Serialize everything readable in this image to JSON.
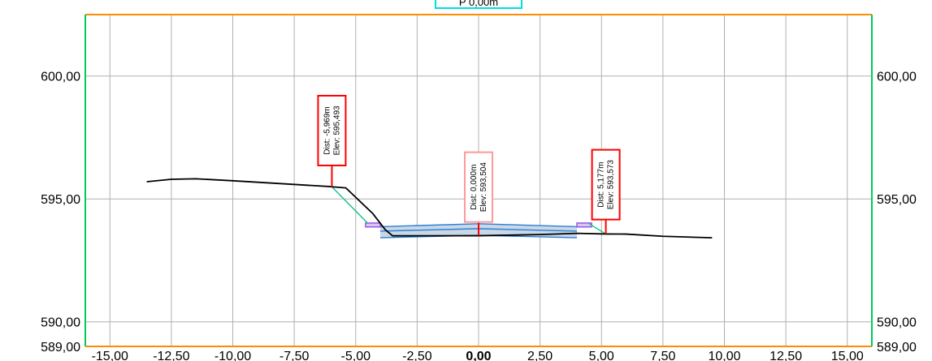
{
  "chart_data": {
    "type": "line",
    "title": "P 0,00m",
    "xlim": [
      -16,
      16
    ],
    "ylim": [
      589,
      602.5
    ],
    "x_ticks": [
      -15,
      -12.5,
      -10,
      -7.5,
      -5,
      -2.5,
      0,
      2.5,
      5,
      7.5,
      10,
      12.5,
      15
    ],
    "x_tick_labels": [
      "-15,00",
      "-12,50",
      "-10,00",
      "-7,50",
      "-5,00",
      "-2,50",
      "0,00",
      "2,50",
      "5,00",
      "7,50",
      "10,00",
      "12,50",
      "15,00"
    ],
    "y_ticks": [
      589,
      590,
      595,
      600
    ],
    "y_tick_labels": [
      "589,00",
      "590,00",
      "595,00",
      "600,00"
    ],
    "grid": true,
    "series": [
      {
        "kind": "ground",
        "color": "#000000",
        "x": [
          -13.5,
          -12.5,
          -11.5,
          -10.0,
          -8.0,
          -6.0,
          -5.97,
          -5.4,
          -4.3,
          -3.8,
          -3.5,
          0.0,
          2.5,
          4.0,
          5.18,
          6.0,
          7.5,
          9.5
        ],
        "y": [
          595.7,
          595.8,
          595.82,
          595.74,
          595.62,
          595.5,
          595.493,
          595.45,
          594.4,
          593.75,
          593.5,
          593.504,
          593.55,
          593.6,
          593.573,
          593.57,
          593.48,
          593.42
        ]
      },
      {
        "kind": "slope-left",
        "color": "#12c08a",
        "x": [
          -5.969,
          -4.5
        ],
        "y": [
          595.493,
          594.0
        ]
      },
      {
        "kind": "slope-right",
        "color": "#12c08a",
        "x": [
          4.5,
          5.177
        ],
        "y": [
          593.99,
          593.573
        ]
      },
      {
        "kind": "pavement-top",
        "color": "#2a7fd4",
        "x": [
          -4.0,
          0.0,
          4.0
        ],
        "y": [
          593.87,
          593.99,
          593.87
        ]
      },
      {
        "kind": "pavement-mid",
        "color": "#2a7fd4",
        "x": [
          -4.0,
          0.0,
          4.0
        ],
        "y": [
          593.69,
          593.79,
          593.69
        ]
      },
      {
        "kind": "pavement-bottom",
        "color": "#2a7fd4",
        "x": [
          -4.0,
          0.0,
          4.0
        ],
        "y": [
          593.42,
          593.52,
          593.42
        ]
      }
    ],
    "curbs": [
      {
        "x": [
          -4.6,
          -4.0
        ],
        "y": [
          593.86,
          594.02
        ],
        "color": "#9a55e8"
      },
      {
        "x": [
          4.0,
          4.6
        ],
        "y": [
          593.86,
          594.02
        ],
        "color": "#9a55e8"
      }
    ],
    "pavement_fill": "#c9d7e6",
    "annotations": [
      {
        "x": -5.969,
        "y": 595.493,
        "line1": "Dist: -5,969m",
        "line2": "Elev: 595,493",
        "box_color": "#ff0000",
        "top_y": 599.2
      },
      {
        "x": 0.0,
        "y": 593.504,
        "line1": "Dist: 0,000m",
        "line2": "Elev: 593,504",
        "box_color": "#ff9999",
        "top_y": 596.9
      },
      {
        "x": 5.177,
        "y": 593.573,
        "line1": "Dist: 5,177m",
        "line2": "Elev: 593,573",
        "box_color": "#ff0000",
        "top_y": 597.0
      }
    ],
    "colors": {
      "frame_top": "#ff8c00",
      "frame_bottom": "#ff8c00",
      "frame_left": "#00cc55",
      "frame_right": "#00cc55",
      "grid": "#b0b0b0",
      "annotation_stem": "#ff0000"
    }
  }
}
